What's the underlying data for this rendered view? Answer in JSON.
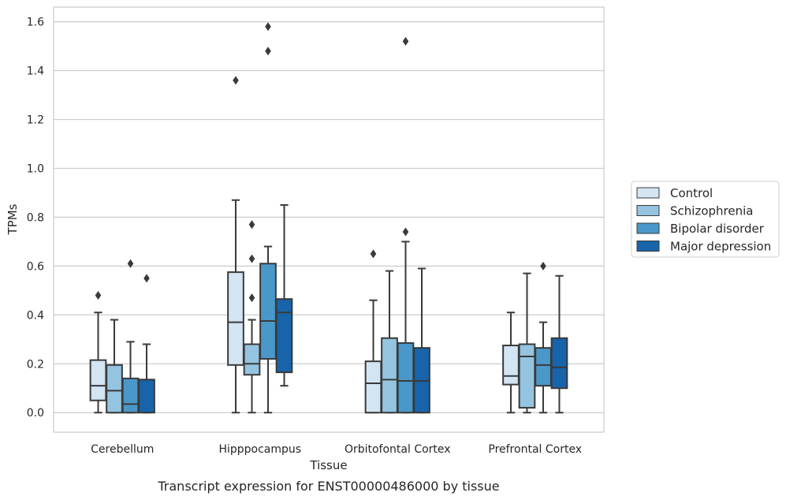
{
  "chart_data": {
    "type": "box",
    "title": "",
    "caption": "Transcript expression for ENST00000486000 by tissue",
    "xlabel": "Tissue",
    "ylabel": "TPMs",
    "ylim": [
      -0.08,
      1.66
    ],
    "yticks": [
      "0.0",
      "0.2",
      "0.4",
      "0.6",
      "0.8",
      "1.0",
      "1.2",
      "1.4",
      "1.6"
    ],
    "grid": "horizontal",
    "legend_position": "right",
    "categories": [
      "Cerebellum",
      "Hipppocampus",
      "Orbitofontal Cortex",
      "Prefrontal Cortex"
    ],
    "series": [
      {
        "name": "Control",
        "color": "#d3e4f3",
        "boxes": [
          {
            "whislo": 0.0,
            "q1": 0.05,
            "med": 0.11,
            "q3": 0.215,
            "whishi": 0.41,
            "fliers": [
              0.48
            ]
          },
          {
            "whislo": 0.0,
            "q1": 0.195,
            "med": 0.37,
            "q3": 0.575,
            "whishi": 0.87,
            "fliers": [
              1.36
            ]
          },
          {
            "whislo": 0.0,
            "q1": 0.0,
            "med": 0.12,
            "q3": 0.21,
            "whishi": 0.46,
            "fliers": [
              0.65
            ]
          },
          {
            "whislo": 0.0,
            "q1": 0.115,
            "med": 0.15,
            "q3": 0.275,
            "whishi": 0.41,
            "fliers": []
          }
        ]
      },
      {
        "name": "Schizophrenia",
        "color": "#94c4df",
        "boxes": [
          {
            "whislo": 0.0,
            "q1": 0.0,
            "med": 0.09,
            "q3": 0.195,
            "whishi": 0.38,
            "fliers": []
          },
          {
            "whislo": 0.0,
            "q1": 0.155,
            "med": 0.2,
            "q3": 0.28,
            "whishi": 0.38,
            "fliers": [
              0.47,
              0.63,
              0.77
            ]
          },
          {
            "whislo": 0.0,
            "q1": 0.0,
            "med": 0.135,
            "q3": 0.305,
            "whishi": 0.58,
            "fliers": []
          },
          {
            "whislo": 0.0,
            "q1": 0.02,
            "med": 0.23,
            "q3": 0.28,
            "whishi": 0.57,
            "fliers": []
          }
        ]
      },
      {
        "name": "Bipolar disorder",
        "color": "#4a98c9",
        "boxes": [
          {
            "whislo": 0.0,
            "q1": 0.0,
            "med": 0.035,
            "q3": 0.14,
            "whishi": 0.29,
            "fliers": [
              0.61
            ]
          },
          {
            "whislo": 0.0,
            "q1": 0.22,
            "med": 0.375,
            "q3": 0.61,
            "whishi": 0.68,
            "fliers": [
              1.48,
              1.58
            ]
          },
          {
            "whislo": 0.0,
            "q1": 0.0,
            "med": 0.13,
            "q3": 0.285,
            "whishi": 0.7,
            "fliers": [
              0.74,
              1.52
            ]
          },
          {
            "whislo": 0.0,
            "q1": 0.11,
            "med": 0.195,
            "q3": 0.265,
            "whishi": 0.37,
            "fliers": [
              0.6
            ]
          }
        ]
      },
      {
        "name": "Major depression",
        "color": "#1764ab",
        "boxes": [
          {
            "whislo": 0.0,
            "q1": 0.0,
            "med": 0.135,
            "q3": 0.135,
            "whishi": 0.28,
            "fliers": [
              0.55
            ]
          },
          {
            "whislo": 0.11,
            "q1": 0.165,
            "med": 0.41,
            "q3": 0.465,
            "whishi": 0.85,
            "fliers": []
          },
          {
            "whislo": 0.0,
            "q1": 0.0,
            "med": 0.13,
            "q3": 0.265,
            "whishi": 0.59,
            "fliers": []
          },
          {
            "whislo": 0.0,
            "q1": 0.1,
            "med": 0.185,
            "q3": 0.305,
            "whishi": 0.56,
            "fliers": []
          }
        ]
      }
    ]
  }
}
